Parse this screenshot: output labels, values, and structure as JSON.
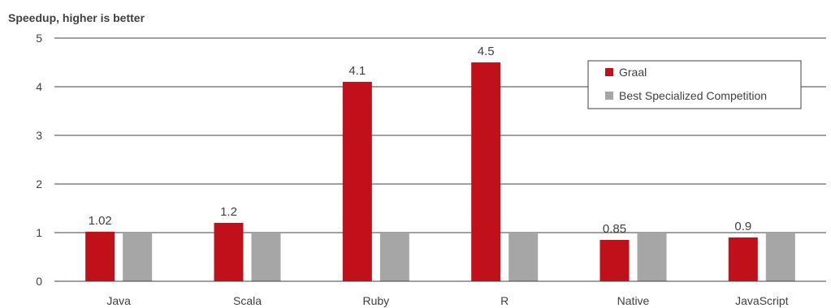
{
  "chart_data": {
    "type": "bar",
    "title": "Speedup, higher is better",
    "xlabel": "",
    "ylabel": "",
    "ylim": [
      0,
      5
    ],
    "yticks": [
      0,
      1,
      2,
      3,
      4,
      5
    ],
    "grid": true,
    "legend": "top-right",
    "categories": [
      "Java",
      "Scala",
      "Ruby",
      "R",
      "Native",
      "JavaScript"
    ],
    "series": [
      {
        "name": "Graal",
        "color": "#c0101a",
        "values": [
          1.02,
          1.2,
          4.1,
          4.5,
          0.85,
          0.9
        ],
        "labels": [
          "1.02",
          "1.2",
          "4.1",
          "4.5",
          "0.85",
          "0.9"
        ]
      },
      {
        "name": "Best Specialized Competition",
        "color": "#a6a6a6",
        "values": [
          1,
          1,
          1,
          1,
          1,
          1
        ]
      }
    ]
  }
}
